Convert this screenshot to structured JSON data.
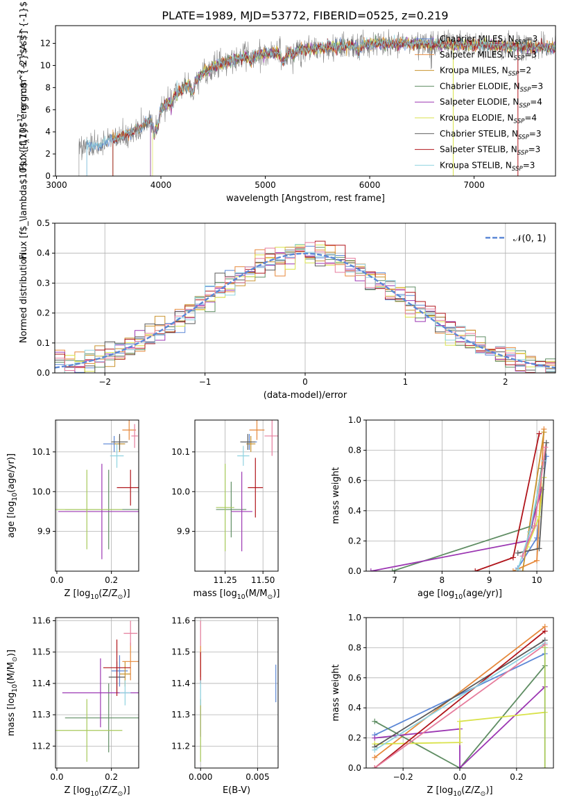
{
  "figure": {
    "title": "PLATE=1989, MJD=53772, FIBERID=0525, z=0.219"
  },
  "colors": {
    "c0": "#5b87d6",
    "c1": "#e6883a",
    "c2": "#c8922c",
    "c3": "#5f8d63",
    "c4": "#9b36b2",
    "c5": "#d9e24a",
    "c6": "#5a5a5a",
    "c7": "#b0141a",
    "c8": "#8fd3e0",
    "c9": "#e67c9c",
    "c10": "#a7c95a"
  },
  "chart_data": [
    {
      "id": "spectrum",
      "type": "line",
      "xlabel": "wavelength [Angstrom, rest frame]",
      "ylabel": "Flux [f$_\\lambda$10$^{-17}$ erg cm$^{-2}$ s$^{-1}$ A$^{-1}$]",
      "ylabel_main": "Flux [f",
      "ylabel_sub": "λ",
      "ylabel_mid": "10",
      "ylabel_sup1": "−17",
      "ylabel_mid2": " erg cm",
      "ylabel_sup2": "−2",
      "ylabel_mid3": " s",
      "ylabel_sup3": "−1",
      "ylabel_mid4": " A",
      "ylabel_sup4": "−1",
      "ylabel_end": "]",
      "xlim": [
        2990,
        7780
      ],
      "ylim": [
        0,
        13.6
      ],
      "xticks": [
        "3000",
        "4000",
        "5000",
        "6000",
        "7000"
      ],
      "xtick_values": [
        3000,
        4000,
        5000,
        6000,
        7000
      ],
      "yticks": [
        "0",
        "2",
        "4",
        "6",
        "8",
        "10",
        "12"
      ],
      "ytick_values": [
        0,
        2,
        4,
        6,
        8,
        10,
        12
      ],
      "observed_range": [
        3215,
        7780
      ],
      "continuum": [
        [
          3215,
          2.6
        ],
        [
          3400,
          2.8
        ],
        [
          3600,
          3.5
        ],
        [
          3800,
          4.4
        ],
        [
          3950,
          5.5
        ],
        [
          4100,
          7.0
        ],
        [
          4300,
          8.6
        ],
        [
          4500,
          9.9
        ],
        [
          4800,
          10.8
        ],
        [
          5100,
          11.2
        ],
        [
          5400,
          11.5
        ],
        [
          5700,
          11.7
        ],
        [
          6000,
          12.0
        ],
        [
          6300,
          12.0
        ],
        [
          6600,
          11.9
        ],
        [
          6900,
          11.9
        ],
        [
          7200,
          11.8
        ],
        [
          7500,
          11.7
        ],
        [
          7780,
          11.6
        ]
      ],
      "legend": [
        {
          "label": "Chabrier MILES, N",
          "sub": "SSP",
          "suffix": "=3",
          "color": "c0",
          "start": 3290
        },
        {
          "label": "Salpeter MILES, N",
          "sub": "SSP",
          "suffix": "=3",
          "color": "c1",
          "start": 3540
        },
        {
          "label": "Kroupa MILES, N",
          "sub": "SSP",
          "suffix": "=2",
          "color": "c2",
          "start": 3540
        },
        {
          "label": "Chabrier ELODIE, N",
          "sub": "SSP",
          "suffix": "=3",
          "color": "c3",
          "start": 3900
        },
        {
          "label": "Salpeter ELODIE, N",
          "sub": "SSP",
          "suffix": "=4",
          "color": "c4",
          "start": 3900
        },
        {
          "label": "Kroupa ELODIE, N",
          "sub": "SSP",
          "suffix": "=4",
          "color": "c5",
          "start": 3920
        },
        {
          "label": "Chabrier STELIB, N",
          "sub": "SSP",
          "suffix": "=3",
          "color": "c6",
          "start": 3540
        },
        {
          "label": "Salpeter STELIB, N",
          "sub": "SSP",
          "suffix": "=3",
          "color": "c7",
          "start": 3540
        },
        {
          "label": "Kroupa STELIB, N",
          "sub": "SSP",
          "suffix": "=3",
          "color": "c8",
          "start": 3290
        }
      ]
    },
    {
      "id": "residuals",
      "type": "histogram",
      "xlabel": "(data-model)/error",
      "ylabel": "Normed distribution",
      "xlim": [
        -2.5,
        2.5
      ],
      "ylim": [
        0,
        0.5
      ],
      "xticks": [
        "−2",
        "−1",
        "0",
        "1",
        "2"
      ],
      "xtick_values": [
        -2,
        -1,
        0,
        1,
        2
      ],
      "yticks": [
        "0.0",
        "0.1",
        "0.2",
        "0.3",
        "0.4",
        "0.5"
      ],
      "ytick_values": [
        0,
        0.1,
        0.2,
        0.3,
        0.4,
        0.5
      ],
      "legend_label": "𝒩(0, 1)",
      "bin_width": 0.1,
      "grid": true
    },
    {
      "id": "age_vs_Z",
      "type": "errorbar",
      "xlabel": "Z [log",
      "xlabel_sub": "10",
      "xlabel_end": "(Z/Z",
      "xlabel_sub2": "⊙",
      "xlabel_close": ")]",
      "ylabel": "age  [log",
      "ylabel_sub": "10",
      "ylabel_end": "(age/yr)]",
      "xlim": [
        -0.005,
        0.3
      ],
      "ylim": [
        9.8,
        10.18
      ],
      "xticks": [
        "0.0",
        "0.2"
      ],
      "xtick_values": [
        0,
        0.2
      ],
      "yticks": [
        "9.9",
        "10.0",
        "10.1"
      ],
      "ytick_values": [
        9.9,
        10.0,
        10.1
      ],
      "points": [
        {
          "x": 0.21,
          "y": 10.12,
          "dx": 0.04,
          "dy": 0.02,
          "color": "c0"
        },
        {
          "x": 0.265,
          "y": 10.155,
          "dx": 0.025,
          "dy": 0.025,
          "color": "c1"
        },
        {
          "x": 0.23,
          "y": 10.12,
          "dx": 0.02,
          "dy": 0.02,
          "color": "c2"
        },
        {
          "x": 0.19,
          "y": 9.955,
          "dx": 0.16,
          "dy": 0.1,
          "color": "c3"
        },
        {
          "x": 0.165,
          "y": 9.95,
          "dx": 0.16,
          "dy": 0.12,
          "color": "c4"
        },
        {
          "x": 0.11,
          "y": 9.955,
          "dx": 0.13,
          "dy": 0.1,
          "color": "c10"
        },
        {
          "x": 0.23,
          "y": 10.125,
          "dx": 0.03,
          "dy": 0.02,
          "color": "c6"
        },
        {
          "x": 0.27,
          "y": 10.01,
          "dx": 0.05,
          "dy": 0.045,
          "color": "c7"
        },
        {
          "x": 0.22,
          "y": 10.09,
          "dx": 0.025,
          "dy": 0.03,
          "color": "c8"
        },
        {
          "x": 0.285,
          "y": 10.14,
          "dx": 0.012,
          "dy": 0.03,
          "color": "c9"
        }
      ]
    },
    {
      "id": "age_vs_mass",
      "type": "errorbar",
      "xlabel": "mass [log",
      "xlabel_sub": "10",
      "xlabel_end": "(M/M",
      "xlabel_sub2": "⊙",
      "xlabel_close": ")]",
      "xlim": [
        11.05,
        11.6
      ],
      "ylim": [
        9.8,
        10.18
      ],
      "xticks": [
        "11.25",
        "11.50"
      ],
      "xtick_values": [
        11.25,
        11.5
      ],
      "yticks": [
        "9.9",
        "10.0",
        "10.1"
      ],
      "ytick_values": [
        9.9,
        10.0,
        10.1
      ],
      "points": [
        {
          "x": 11.41,
          "y": 10.125,
          "dx": 0.05,
          "dy": 0.02,
          "color": "c0"
        },
        {
          "x": 11.46,
          "y": 10.155,
          "dx": 0.05,
          "dy": 0.025,
          "color": "c1"
        },
        {
          "x": 11.42,
          "y": 10.12,
          "dx": 0.03,
          "dy": 0.02,
          "color": "c2"
        },
        {
          "x": 11.29,
          "y": 9.955,
          "dx": 0.1,
          "dy": 0.07,
          "color": "c3"
        },
        {
          "x": 11.36,
          "y": 9.95,
          "dx": 0.07,
          "dy": 0.1,
          "color": "c4"
        },
        {
          "x": 11.25,
          "y": 9.96,
          "dx": 0.06,
          "dy": 0.11,
          "color": "c10"
        },
        {
          "x": 11.4,
          "y": 10.125,
          "dx": 0.05,
          "dy": 0.02,
          "color": "c6"
        },
        {
          "x": 11.45,
          "y": 10.01,
          "dx": 0.05,
          "dy": 0.075,
          "color": "c7"
        },
        {
          "x": 11.37,
          "y": 10.09,
          "dx": 0.04,
          "dy": 0.025,
          "color": "c8"
        },
        {
          "x": 11.56,
          "y": 10.14,
          "dx": 0.05,
          "dy": 0.05,
          "color": "c9"
        }
      ]
    },
    {
      "id": "weight_vs_age",
      "type": "line",
      "xlabel": "age  [log",
      "xlabel_sub": "10",
      "xlabel_end": "(age/yr)]",
      "ylabel": "mass weight",
      "xlim": [
        6.4,
        10.35
      ],
      "ylim": [
        0,
        1
      ],
      "xticks": [
        "7",
        "8",
        "9",
        "10"
      ],
      "xtick_values": [
        7,
        8,
        9,
        10
      ],
      "yticks": [
        "0.0",
        "0.2",
        "0.4",
        "0.6",
        "0.8",
        "1.0"
      ],
      "ytick_values": [
        0,
        0.2,
        0.4,
        0.6,
        0.8,
        1.0
      ],
      "series": [
        {
          "color": "c0",
          "x": [
            9.6,
            10.0,
            10.2
          ],
          "y": [
            0.02,
            0.22,
            0.76
          ]
        },
        {
          "color": "c1",
          "x": [
            9.5,
            10.0,
            10.15
          ],
          "y": [
            0.0,
            0.07,
            0.94
          ]
        },
        {
          "color": "c2",
          "x": [
            9.7,
            10.15
          ],
          "y": [
            0.0,
            0.92
          ]
        },
        {
          "color": "c3",
          "x": [
            6.95,
            9.9,
            10.1
          ],
          "y": [
            0.0,
            0.3,
            0.68
          ]
        },
        {
          "color": "c4",
          "x": [
            6.5,
            9.8,
            10.1
          ],
          "y": [
            0.0,
            0.2,
            0.54
          ]
        },
        {
          "color": "c5",
          "x": [
            9.8,
            10.05,
            10.15
          ],
          "y": [
            0.16,
            0.36,
            0.62
          ]
        },
        {
          "color": "c6",
          "x": [
            9.6,
            10.05,
            10.2
          ],
          "y": [
            0.12,
            0.15,
            0.85
          ]
        },
        {
          "color": "c7",
          "x": [
            8.7,
            9.5,
            10.05
          ],
          "y": [
            0.0,
            0.09,
            0.91
          ]
        },
        {
          "color": "c8",
          "x": [
            9.6,
            9.85,
            10.15
          ],
          "y": [
            0.01,
            0.26,
            0.73
          ]
        },
        {
          "color": "c9",
          "x": [
            9.7,
            9.95,
            10.18
          ],
          "y": [
            0.1,
            0.3,
            0.82
          ]
        }
      ]
    },
    {
      "id": "mass_vs_Z",
      "type": "errorbar",
      "xlabel": "Z [log",
      "xlabel_sub": "10",
      "xlabel_end": "(Z/Z",
      "xlabel_sub2": "⊙",
      "xlabel_close": ")]",
      "ylabel": "mass [log",
      "ylabel_sub": "10",
      "ylabel_end": "(M/M",
      "ylabel_sub2": "⊙",
      "ylabel_close": ")]",
      "xlim": [
        -0.005,
        0.3
      ],
      "ylim": [
        11.13,
        11.61
      ],
      "xticks": [
        "0.0",
        "0.2"
      ],
      "xtick_values": [
        0,
        0.2
      ],
      "yticks": [
        "11.2",
        "11.3",
        "11.4",
        "11.5",
        "11.6"
      ],
      "ytick_values": [
        11.2,
        11.3,
        11.4,
        11.5,
        11.6
      ],
      "points": [
        {
          "x": 0.23,
          "y": 11.44,
          "dx": 0.03,
          "dy": 0.05,
          "color": "c0"
        },
        {
          "x": 0.27,
          "y": 11.47,
          "dx": 0.03,
          "dy": 0.06,
          "color": "c1"
        },
        {
          "x": 0.25,
          "y": 11.43,
          "dx": 0.02,
          "dy": 0.04,
          "color": "c2"
        },
        {
          "x": 0.19,
          "y": 11.29,
          "dx": 0.16,
          "dy": 0.11,
          "color": "c3"
        },
        {
          "x": 0.16,
          "y": 11.37,
          "dx": 0.14,
          "dy": 0.11,
          "color": "c4"
        },
        {
          "x": 0.11,
          "y": 11.25,
          "dx": 0.13,
          "dy": 0.1,
          "color": "c10"
        },
        {
          "x": 0.22,
          "y": 11.42,
          "dx": 0.03,
          "dy": 0.05,
          "color": "c6"
        },
        {
          "x": 0.22,
          "y": 11.45,
          "dx": 0.05,
          "dy": 0.09,
          "color": "c7"
        },
        {
          "x": 0.25,
          "y": 11.37,
          "dx": 0.02,
          "dy": 0.04,
          "color": "c8"
        },
        {
          "x": 0.27,
          "y": 11.56,
          "dx": 0.025,
          "dy": 0.04,
          "color": "c9"
        }
      ]
    },
    {
      "id": "mass_vs_EBV",
      "type": "errorbar",
      "xlabel": "E(B-V)",
      "xlim": [
        -0.0005,
        0.0068
      ],
      "ylim": [
        11.13,
        11.61
      ],
      "xticks": [
        "0.000",
        "0.005"
      ],
      "xtick_values": [
        0,
        0.005
      ],
      "yticks": [
        "11.2",
        "11.3",
        "11.4",
        "11.5",
        "11.6"
      ],
      "ytick_values": [
        11.2,
        11.3,
        11.4,
        11.5,
        11.6
      ],
      "points": [
        {
          "x": 0.0066,
          "y": 11.4,
          "dx": 0,
          "dy": 0.06,
          "color": "c0"
        },
        {
          "x": 0.0,
          "y": 11.47,
          "dx": 0,
          "dy": 0.05,
          "color": "c1"
        },
        {
          "x": 0.0,
          "y": 11.29,
          "dx": 0,
          "dy": 0.06,
          "color": "c4"
        },
        {
          "x": 0.0,
          "y": 11.25,
          "dx": 0,
          "dy": 0.1,
          "color": "c10"
        },
        {
          "x": 0.0,
          "y": 11.45,
          "dx": 0,
          "dy": 0.05,
          "color": "c7"
        },
        {
          "x": 0.0,
          "y": 11.37,
          "dx": 0,
          "dy": 0.04,
          "color": "c8"
        },
        {
          "x": 0.0,
          "y": 11.56,
          "dx": 0,
          "dy": 0.04,
          "color": "c9"
        }
      ]
    },
    {
      "id": "weight_vs_Z",
      "type": "line",
      "xlabel": "Z [log",
      "xlabel_sub": "10",
      "xlabel_end": "(Z/Z",
      "xlabel_sub2": "⊙",
      "xlabel_close": ")]",
      "ylabel": "mass weight",
      "xlim": [
        -0.33,
        0.33
      ],
      "ylim": [
        0,
        1
      ],
      "xticks": [
        "−0.2",
        "0.0",
        "0.2"
      ],
      "xtick_values": [
        -0.2,
        0,
        0.2
      ],
      "yticks": [
        "0.0",
        "0.2",
        "0.4",
        "0.6",
        "0.8",
        "1.0"
      ],
      "ytick_values": [
        0,
        0.2,
        0.4,
        0.6,
        0.8,
        1.0
      ],
      "series": [
        {
          "color": "c0",
          "x": [
            -0.3,
            0.3
          ],
          "y": [
            0.22,
            0.76
          ]
        },
        {
          "color": "c1",
          "x": [
            -0.3,
            0.3
          ],
          "y": [
            0.07,
            0.94
          ]
        },
        {
          "color": "c3",
          "x": [
            -0.3,
            0.0,
            0.3
          ],
          "y": [
            0.31,
            0.0,
            0.68
          ]
        },
        {
          "color": "c4",
          "x": [
            -0.3,
            0.0,
            0.0,
            0.3
          ],
          "y": [
            0.2,
            0.26,
            0.0,
            0.54
          ]
        },
        {
          "color": "c5",
          "x": [
            -0.3,
            0.0,
            0.0,
            0.3
          ],
          "y": [
            0.16,
            0.17,
            0.31,
            0.37
          ]
        },
        {
          "color": "c6",
          "x": [
            -0.3,
            0.3
          ],
          "y": [
            0.14,
            0.85
          ]
        },
        {
          "color": "c7",
          "x": [
            -0.3,
            0.3
          ],
          "y": [
            0.0,
            0.91
          ]
        },
        {
          "color": "c8",
          "x": [
            -0.3,
            0.3
          ],
          "y": [
            0.12,
            0.83
          ]
        },
        {
          "color": "c9",
          "x": [
            -0.3,
            0.3
          ],
          "y": [
            0.0,
            0.82
          ]
        },
        {
          "color": "c10",
          "x": [
            0.3,
            0.3
          ],
          "y": [
            0.0,
            0.8
          ]
        }
      ]
    }
  ]
}
